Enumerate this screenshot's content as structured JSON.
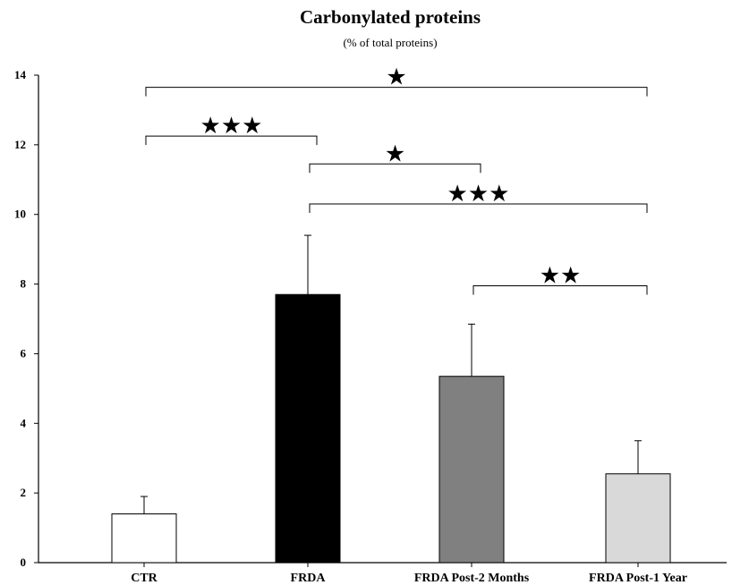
{
  "chart_data": {
    "type": "bar",
    "title": "Carbonylated proteins",
    "subtitle": "(% of total proteins)",
    "xlabel": "",
    "ylabel": "",
    "ylim": [
      0,
      14
    ],
    "yticks": [
      0,
      2,
      4,
      6,
      8,
      10,
      12,
      14
    ],
    "grid": false,
    "categories": [
      "CTR",
      "FRDA",
      "FRDA Post-2 Months",
      "FRDA Post-1 Year"
    ],
    "values": [
      1.4,
      7.7,
      5.35,
      2.55
    ],
    "errors": [
      0.5,
      1.7,
      1.5,
      0.95
    ],
    "colors": [
      "#ffffff",
      "#000000",
      "#808080",
      "#d9d9d9"
    ],
    "significance": [
      {
        "from": 0,
        "to": 3,
        "stars": "★",
        "level": 13.65
      },
      {
        "from": 0,
        "to": 1,
        "stars": "★★★",
        "level": 12.25
      },
      {
        "from": 1,
        "to": 2,
        "stars": "★",
        "level": 11.45
      },
      {
        "from": 1,
        "to": 3,
        "stars": "★★★",
        "level": 10.3
      },
      {
        "from": 2,
        "to": 3,
        "stars": "★★",
        "level": 7.95
      }
    ]
  }
}
